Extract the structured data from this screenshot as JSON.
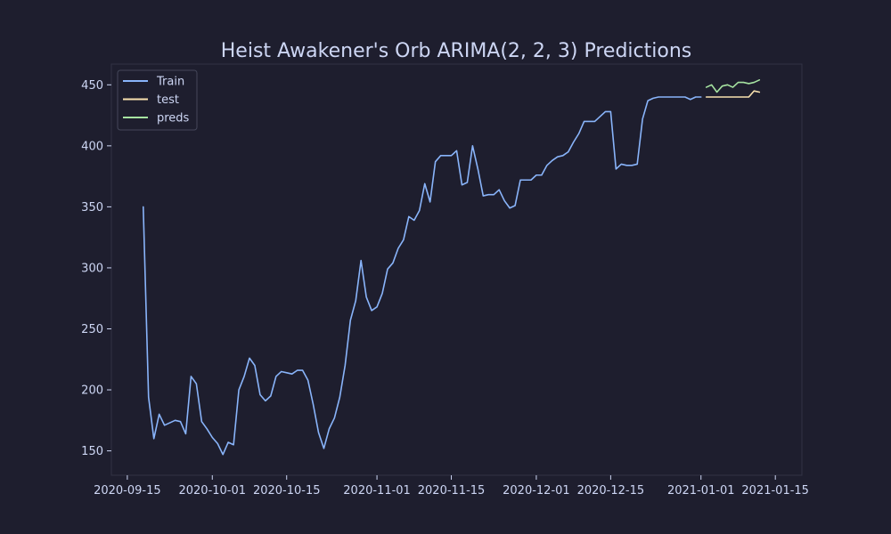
{
  "chart_data": {
    "type": "line",
    "title": "Heist Awakener's Orb ARIMA(2, 2, 3) Predictions",
    "xlabel": "",
    "ylabel": "",
    "xlim": [
      "2020-09-12",
      "2021-01-20"
    ],
    "ylim": [
      130,
      467
    ],
    "x_ticks": [
      "2020-09-15",
      "2020-10-01",
      "2020-10-15",
      "2020-11-01",
      "2020-11-15",
      "2020-12-01",
      "2020-12-15",
      "2021-01-01",
      "2021-01-15"
    ],
    "y_ticks": [
      150,
      200,
      250,
      300,
      350,
      400,
      450
    ],
    "grid": false,
    "legend": {
      "position": "top-left"
    },
    "series": [
      {
        "name": "Train",
        "color": "#89b4fa",
        "x": [
          "2020-09-18",
          "2020-09-19",
          "2020-09-20",
          "2020-09-21",
          "2020-09-22",
          "2020-09-23",
          "2020-09-24",
          "2020-09-25",
          "2020-09-26",
          "2020-09-27",
          "2020-09-28",
          "2020-09-29",
          "2020-09-30",
          "2020-10-01",
          "2020-10-02",
          "2020-10-03",
          "2020-10-04",
          "2020-10-05",
          "2020-10-06",
          "2020-10-07",
          "2020-10-08",
          "2020-10-09",
          "2020-10-10",
          "2020-10-11",
          "2020-10-12",
          "2020-10-13",
          "2020-10-14",
          "2020-10-15",
          "2020-10-16",
          "2020-10-17",
          "2020-10-18",
          "2020-10-19",
          "2020-10-20",
          "2020-10-21",
          "2020-10-22",
          "2020-10-23",
          "2020-10-24",
          "2020-10-25",
          "2020-10-26",
          "2020-10-27",
          "2020-10-28",
          "2020-10-29",
          "2020-10-30",
          "2020-10-31",
          "2020-11-01",
          "2020-11-02",
          "2020-11-03",
          "2020-11-04",
          "2020-11-05",
          "2020-11-06",
          "2020-11-07",
          "2020-11-08",
          "2020-11-09",
          "2020-11-10",
          "2020-11-11",
          "2020-11-12",
          "2020-11-13",
          "2020-11-14",
          "2020-11-15",
          "2020-11-16",
          "2020-11-17",
          "2020-11-18",
          "2020-11-19",
          "2020-11-20",
          "2020-11-21",
          "2020-11-22",
          "2020-11-23",
          "2020-11-24",
          "2020-11-25",
          "2020-11-26",
          "2020-11-27",
          "2020-11-28",
          "2020-11-29",
          "2020-11-30",
          "2020-12-01",
          "2020-12-02",
          "2020-12-03",
          "2020-12-04",
          "2020-12-05",
          "2020-12-06",
          "2020-12-07",
          "2020-12-08",
          "2020-12-09",
          "2020-12-10",
          "2020-12-11",
          "2020-12-12",
          "2020-12-13",
          "2020-12-14",
          "2020-12-15",
          "2020-12-16",
          "2020-12-17",
          "2020-12-18",
          "2020-12-19",
          "2020-12-20",
          "2020-12-21",
          "2020-12-22",
          "2020-12-23",
          "2020-12-24",
          "2020-12-25",
          "2020-12-26",
          "2020-12-27",
          "2020-12-28",
          "2020-12-29",
          "2020-12-30",
          "2020-12-31",
          "2021-01-01"
        ],
        "values": [
          350,
          194,
          160,
          180,
          171,
          173,
          175,
          174,
          164,
          211,
          205,
          174,
          168,
          161,
          156,
          147,
          157,
          155,
          200,
          211,
          226,
          220,
          196,
          191,
          195,
          211,
          215,
          214,
          213,
          216,
          216,
          208,
          188,
          165,
          152,
          168,
          177,
          194,
          220,
          257,
          273,
          306,
          276,
          265,
          268,
          279,
          299,
          304,
          316,
          323,
          342,
          339,
          347,
          369,
          354,
          387,
          392,
          392,
          392,
          396,
          368,
          370,
          400,
          381,
          359,
          360,
          360,
          364,
          355,
          349,
          351,
          372,
          372,
          372,
          376,
          376,
          384,
          388,
          391,
          392,
          395,
          403,
          410,
          420,
          420,
          420,
          424,
          428,
          428,
          381,
          385,
          384,
          384,
          385,
          422,
          437,
          439,
          440,
          440,
          440,
          440,
          440,
          440,
          438,
          440,
          440
        ]
      },
      {
        "name": "test",
        "color": "#f9e2af",
        "x": [
          "2021-01-02",
          "2021-01-03",
          "2021-01-04",
          "2021-01-05",
          "2021-01-06",
          "2021-01-07",
          "2021-01-08",
          "2021-01-09",
          "2021-01-10",
          "2021-01-11",
          "2021-01-12"
        ],
        "values": [
          440,
          440,
          440,
          440,
          440,
          440,
          440,
          440,
          440,
          445,
          444
        ]
      },
      {
        "name": "preds",
        "color": "#a6e3a1",
        "x": [
          "2021-01-02",
          "2021-01-03",
          "2021-01-04",
          "2021-01-05",
          "2021-01-06",
          "2021-01-07",
          "2021-01-08",
          "2021-01-09",
          "2021-01-10",
          "2021-01-11",
          "2021-01-12"
        ],
        "values": [
          448,
          450,
          444,
          449,
          450,
          448,
          452,
          452,
          451,
          452,
          454
        ]
      }
    ]
  }
}
